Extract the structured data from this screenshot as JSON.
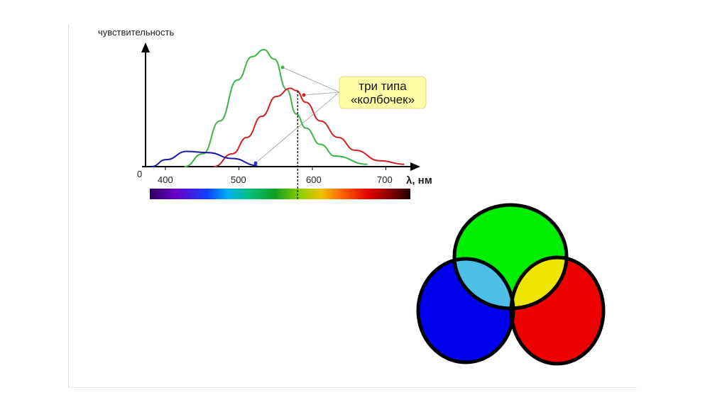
{
  "chart_data": {
    "type": "line",
    "ylabel": "чувствительность",
    "xlabel": "λ, нм",
    "origin_label": "0",
    "x_ticks": [
      "400",
      "500",
      "600",
      "700"
    ],
    "xlim": [
      370,
      735
    ],
    "ylim": [
      0,
      1.05
    ],
    "grid": false,
    "series": [
      {
        "color": "#3cb44a",
        "x": [
          426,
          451,
          474,
          498,
          518,
          534,
          548,
          565,
          578,
          591,
          611,
          631,
          675
        ],
        "y": [
          0,
          0.11,
          0.39,
          0.74,
          0.94,
          1.0,
          0.92,
          0.66,
          0.45,
          0.33,
          0.19,
          0.09,
          0.02
        ]
      },
      {
        "color": "#d02020",
        "x": [
          466,
          491,
          511,
          531,
          551,
          570,
          578,
          591,
          611,
          635,
          658,
          692,
          725
        ],
        "y": [
          0,
          0.11,
          0.25,
          0.43,
          0.6,
          0.67,
          0.65,
          0.55,
          0.39,
          0.25,
          0.14,
          0.05,
          0.02
        ]
      },
      {
        "color": "#1a1aa0",
        "x": [
          381,
          401,
          429,
          458,
          491,
          525
        ],
        "y": [
          0,
          0.06,
          0.13,
          0.12,
          0.07,
          0.01
        ]
      }
    ],
    "marker_line_x": 580,
    "annotation": {
      "line1": "три типа",
      "line2": "«колбочек»",
      "bg": "#ffffa8"
    },
    "spectrum_range": [
      380,
      730
    ]
  },
  "venn": {
    "circles": {
      "green": "#00ee00",
      "blue": "#0000ee",
      "red": "#ee0000"
    },
    "overlaps": {
      "green_blue": "#4bbfe6",
      "green_red": "#eee600",
      "blue_red": "#e055c0",
      "all": "#ffffff"
    }
  }
}
